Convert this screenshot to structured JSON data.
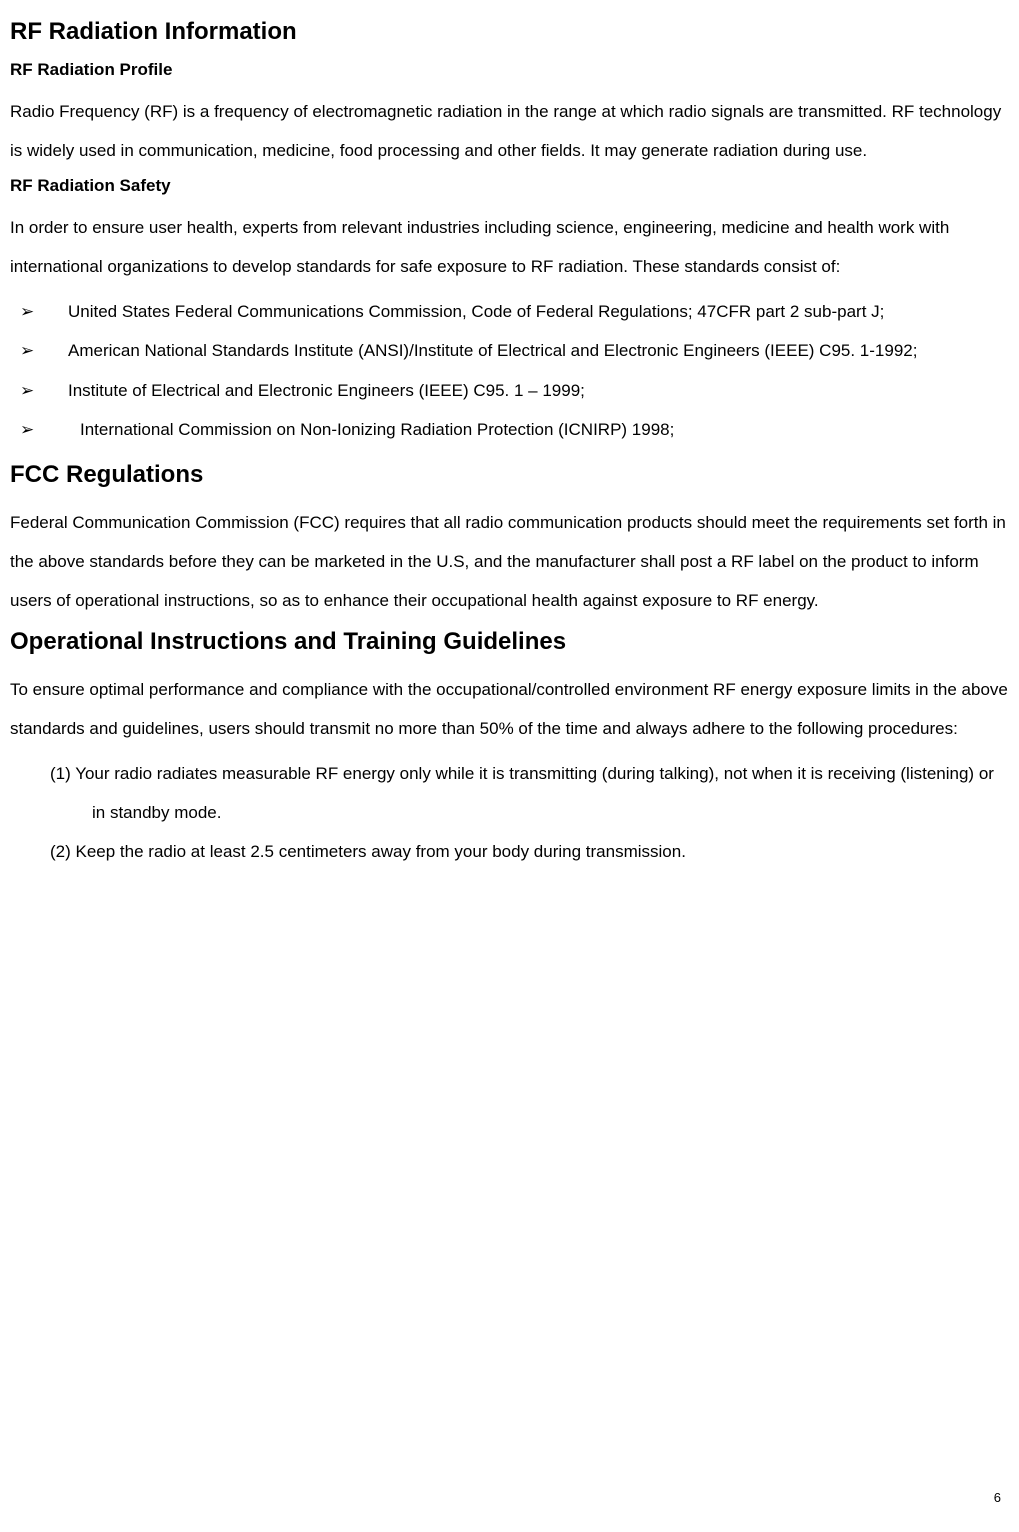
{
  "document": {
    "text_color": "#000000",
    "background_color": "#ffffff",
    "font_family": "Arial",
    "body_fontsize": 17,
    "h1_fontsize": 24,
    "h2_fontsize": 17,
    "line_height": 2.3
  },
  "sections": {
    "rf_info": {
      "heading": "RF Radiation Information",
      "profile_heading": "RF Radiation Profile",
      "profile_body": "Radio Frequency (RF) is a frequency of electromagnetic radiation in the range at which radio signals are transmitted. RF technology is widely used in communication, medicine, food processing and other fields. It may generate radiation during use.",
      "safety_heading": "RF Radiation Safety",
      "safety_body": "In order to ensure user health, experts from relevant industries including science, engineering, medicine and health work with international organizations to develop standards for safe exposure to RF radiation. These standards consist of:",
      "standards": {
        "item1": "United States Federal Communications Commission, Code of Federal Regulations; 47CFR part 2 sub-part J;",
        "item2": "American National Standards Institute (ANSI)/Institute of Electrical and Electronic Engineers (IEEE) C95. 1-1992;",
        "item3": "Institute of Electrical and Electronic Engineers (IEEE) C95. 1 – 1999;",
        "item4": "International Commission on Non-Ionizing Radiation Protection (ICNIRP) 1998;"
      }
    },
    "fcc": {
      "heading": "FCC Regulations",
      "body": "Federal Communication Commission (FCC) requires that all radio communication products should meet the requirements set forth in the above standards before they can be marketed in the U.S, and the manufacturer shall post a RF label on the product to inform users of operational instructions, so as to enhance their occupational health against exposure to RF energy."
    },
    "ops": {
      "heading": "Operational Instructions and Training Guidelines",
      "body": "To ensure optimal performance and compliance with the occupational/controlled environment RF energy exposure limits in the above standards and guidelines, users should transmit no more than 50% of the time and always adhere to the following procedures:",
      "items": {
        "item1": "(1) Your radio radiates measurable RF energy only while it is transmitting (during talking), not when it is receiving (listening) or in standby mode.",
        "item2": "(2) Keep the radio at least 2.5 centimeters away from your body during transmission."
      }
    }
  },
  "page_number": "6"
}
